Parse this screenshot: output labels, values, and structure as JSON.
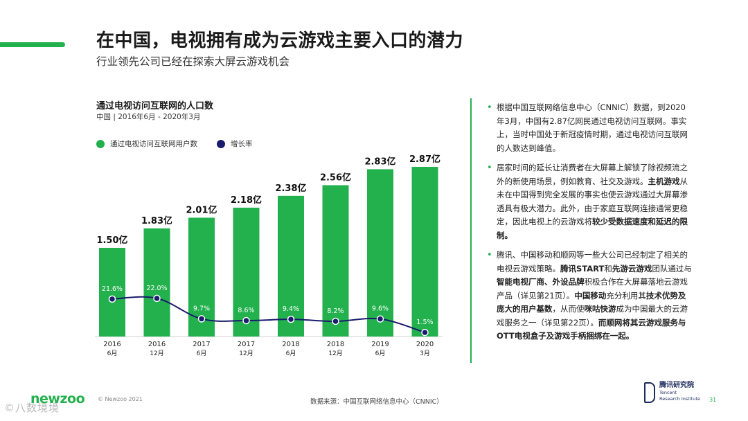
{
  "header": {
    "title": "在中国，电视拥有成为云游戏主要入口的潜力",
    "subtitle": "行业领先公司已经在探索大屏云游戏机会"
  },
  "chart_data": {
    "type": "bar",
    "title": "通过电视访问互联网的人口数",
    "subtitle": "中国 | 2016年6月 - 2020年3月",
    "categories": [
      {
        "year": "2016",
        "month": "6月"
      },
      {
        "year": "2016",
        "month": "12月"
      },
      {
        "year": "2017",
        "month": "6月"
      },
      {
        "year": "2017",
        "month": "12月"
      },
      {
        "year": "2018",
        "month": "6月"
      },
      {
        "year": "2018",
        "month": "12月"
      },
      {
        "year": "2019",
        "month": "6月"
      },
      {
        "year": "2020",
        "month": "3月"
      }
    ],
    "series": [
      {
        "name": "通过电视访问互联网用户数",
        "type": "bar",
        "color": "#22b14c",
        "values": [
          1.5,
          1.83,
          2.01,
          2.18,
          2.38,
          2.56,
          2.83,
          2.87
        ],
        "labels": [
          "1.50亿",
          "1.83亿",
          "2.01亿",
          "2.18亿",
          "2.38亿",
          "2.56亿",
          "2.83亿",
          "2.87亿"
        ]
      },
      {
        "name": "增长率",
        "type": "line",
        "color": "#1a1a6e",
        "values": [
          21.6,
          22.0,
          9.7,
          8.6,
          9.4,
          8.2,
          9.6,
          1.5
        ],
        "labels": [
          "21.6%",
          "22.0%",
          "9.7%",
          "8.6%",
          "9.4%",
          "8.2%",
          "9.6%",
          "1.5%"
        ]
      }
    ],
    "legend": "top-left",
    "grid": false
  },
  "bullets": [
    [
      {
        "t": "根据中国互联网络信息中心（CNNIC）数据，到2020年3月，中国有2.87亿网民通过电视访问互联网。事实上，当时中国处于新冠疫情时期，通过电视访问互联网的人数达到峰值。",
        "b": false
      }
    ],
    [
      {
        "t": "居家时间的延长让消费者在大屏幕上解锁了除视频流之外的新使用场景，例如教育、社交及游戏。",
        "b": false
      },
      {
        "t": "主机游戏",
        "b": true
      },
      {
        "t": "从未在中国得到完全发展的事实也使云游戏通过大屏幕渗透具有极大潜力。此外，由于家庭互联网连接通常更稳定，因此电视上的云游戏将",
        "b": false
      },
      {
        "t": "较少受数据速度和延迟的限制。",
        "b": true
      }
    ],
    [
      {
        "t": "腾讯、中国移动和顺网等一些大公司已经制定了相关的电视云游戏策略。",
        "b": false
      },
      {
        "t": "腾讯START",
        "b": true
      },
      {
        "t": "和",
        "b": false
      },
      {
        "t": "先游云游戏",
        "b": true
      },
      {
        "t": "团队通过与",
        "b": false
      },
      {
        "t": "智能电视厂商、外设品牌",
        "b": true
      },
      {
        "t": "积极合作在大屏幕落地云游戏产品（详见第21页）。",
        "b": false
      },
      {
        "t": "中国移动",
        "b": true
      },
      {
        "t": "充分利用其",
        "b": false
      },
      {
        "t": "技术优势及庞大的用户基数",
        "b": true
      },
      {
        "t": "，从而使",
        "b": false
      },
      {
        "t": "咪咕快游",
        "b": true
      },
      {
        "t": "成为中国最大的云游戏服务之一（详见第22页）。",
        "b": false
      },
      {
        "t": "而顺网将其云游戏服务与OTT电视盒子及游戏手柄捆绑在一起。",
        "b": true
      }
    ]
  ],
  "footer": {
    "brand": "newzoo",
    "copyright": "© Newzoo 2021",
    "source": "数据来源：中国互联网络信息中心（CNNIC）",
    "tencent_cn": "腾讯研究院",
    "tencent_en_1": "Tencent",
    "tencent_en_2": "Research Institute",
    "page_number": "31",
    "watermark": "©八数境境"
  }
}
